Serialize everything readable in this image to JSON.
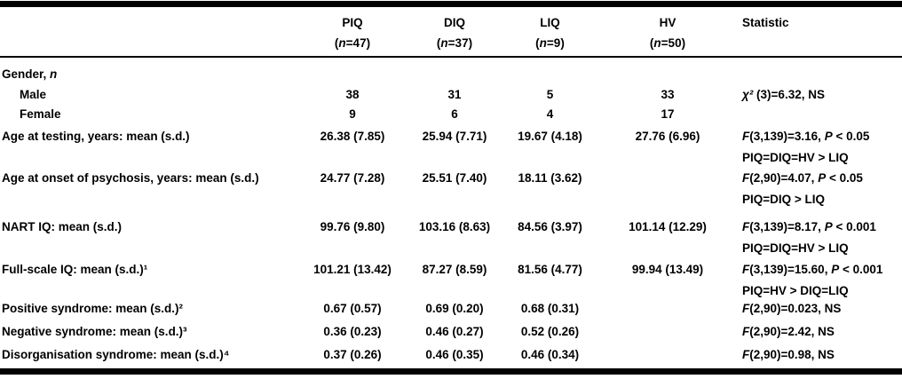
{
  "table": {
    "colors": {
      "text": "#000000",
      "rule": "#000000",
      "background": "#ffffff"
    },
    "header": {
      "variable_label": "",
      "stat_label": "Statistic",
      "group_columns": [
        {
          "id": "piq",
          "name": "PIQ",
          "sub": [
            {
              "t": "("
            },
            {
              "t": "n",
              "i": true
            },
            {
              "t": "=47)"
            }
          ]
        },
        {
          "id": "diq",
          "name": "DIQ",
          "sub": [
            {
              "t": "("
            },
            {
              "t": "n",
              "i": true
            },
            {
              "t": "=37)"
            }
          ]
        },
        {
          "id": "liq",
          "name": "LIQ",
          "sub": [
            {
              "t": "("
            },
            {
              "t": "n",
              "i": true
            },
            {
              "t": "=9)"
            }
          ]
        },
        {
          "id": "hv",
          "name": "HV",
          "sub": [
            {
              "t": "("
            },
            {
              "t": "n",
              "i": true
            },
            {
              "t": "=50)"
            }
          ]
        }
      ]
    },
    "rows": [
      {
        "id": "gender",
        "indent": false,
        "label": [
          {
            "t": "Gender, "
          },
          {
            "t": "n",
            "i": true
          }
        ],
        "values": [
          "",
          "",
          "",
          ""
        ],
        "stat": []
      },
      {
        "id": "male",
        "indent": true,
        "label": [
          {
            "t": "Male"
          }
        ],
        "values": [
          "38",
          "31",
          "5",
          "33"
        ],
        "stat": [
          [
            {
              "t": "χ²",
              "i": true
            },
            {
              "t": " (3)=6.32, NS"
            }
          ]
        ]
      },
      {
        "id": "female",
        "indent": true,
        "label": [
          {
            "t": "Female"
          }
        ],
        "values": [
          "9",
          "6",
          "4",
          "17"
        ],
        "stat": []
      },
      {
        "id": "age_testing",
        "indent": false,
        "label": [
          {
            "t": "Age at testing, years: mean (s.d.)"
          }
        ],
        "values": [
          "26.38 (7.85)",
          "25.94 (7.71)",
          "19.67 (4.18)",
          "27.76 (6.96)"
        ],
        "stat": [
          [
            {
              "t": "F",
              "i": true
            },
            {
              "t": "(3,139)=3.16, "
            },
            {
              "t": "P",
              "i": true
            },
            {
              "t": " < 0.05"
            }
          ],
          [
            {
              "t": "PIQ=DIQ=HV > LIQ"
            }
          ]
        ]
      },
      {
        "id": "age_onset",
        "indent": false,
        "label": [
          {
            "t": "Age at onset of psychosis, years: mean (s.d.)"
          }
        ],
        "values": [
          "24.77 (7.28)",
          "25.51 (7.40)",
          "18.11 (3.62)",
          ""
        ],
        "stat": [
          [
            {
              "t": "F",
              "i": true
            },
            {
              "t": "(2,90)=4.07, "
            },
            {
              "t": "P",
              "i": true
            },
            {
              "t": " < 0.05"
            }
          ],
          [
            {
              "t": "PIQ=DIQ > LIQ"
            }
          ]
        ]
      },
      {
        "id": "nart",
        "indent": false,
        "label": [
          {
            "t": "NART IQ: mean (s.d.)"
          }
        ],
        "values": [
          "99.76 (9.80)",
          "103.16 (8.63)",
          "84.56 (3.97)",
          "101.14 (12.29)"
        ],
        "stat": [
          [
            {
              "t": "F",
              "i": true
            },
            {
              "t": "(3,139)=8.17, "
            },
            {
              "t": "P",
              "i": true
            },
            {
              "t": " < 0.001"
            }
          ],
          [
            {
              "t": "PIQ=DIQ=HV > LIQ"
            }
          ]
        ]
      },
      {
        "id": "fullscale",
        "indent": false,
        "label": [
          {
            "t": "Full-scale IQ: mean (s.d.)¹"
          }
        ],
        "values": [
          "101.21 (13.42)",
          "87.27 (8.59)",
          "81.56 (4.77)",
          "99.94 (13.49)"
        ],
        "stat": [
          [
            {
              "t": "F",
              "i": true
            },
            {
              "t": "(3,139)=15.60, "
            },
            {
              "t": "P",
              "i": true
            },
            {
              "t": " < 0.001"
            }
          ],
          [
            {
              "t": "PIQ=HV > DIQ=LIQ"
            }
          ]
        ]
      },
      {
        "id": "positive",
        "indent": false,
        "label": [
          {
            "t": "Positive syndrome: mean (s.d.)²"
          }
        ],
        "values": [
          "0.67 (0.57)",
          "0.69 (0.20)",
          "0.68 (0.31)",
          ""
        ],
        "stat": [
          [
            {
              "t": "F",
              "i": true
            },
            {
              "t": "(2,90)=0.023, NS"
            }
          ]
        ]
      },
      {
        "id": "negative",
        "indent": false,
        "label": [
          {
            "t": "Negative syndrome: mean (s.d.)³"
          }
        ],
        "values": [
          "0.36 (0.23)",
          "0.46 (0.27)",
          "0.52 (0.26)",
          ""
        ],
        "stat": [
          [
            {
              "t": "F",
              "i": true
            },
            {
              "t": "(2,90)=2.42, NS"
            }
          ]
        ]
      },
      {
        "id": "disorg",
        "indent": false,
        "label": [
          {
            "t": "Disorganisation syndrome: mean (s.d.)⁴"
          }
        ],
        "values": [
          "0.37 (0.26)",
          "0.46 (0.35)",
          "0.46 (0.34)",
          ""
        ],
        "stat": [
          [
            {
              "t": "F",
              "i": true
            },
            {
              "t": "(2,90)=0.98, NS"
            }
          ]
        ]
      }
    ]
  }
}
